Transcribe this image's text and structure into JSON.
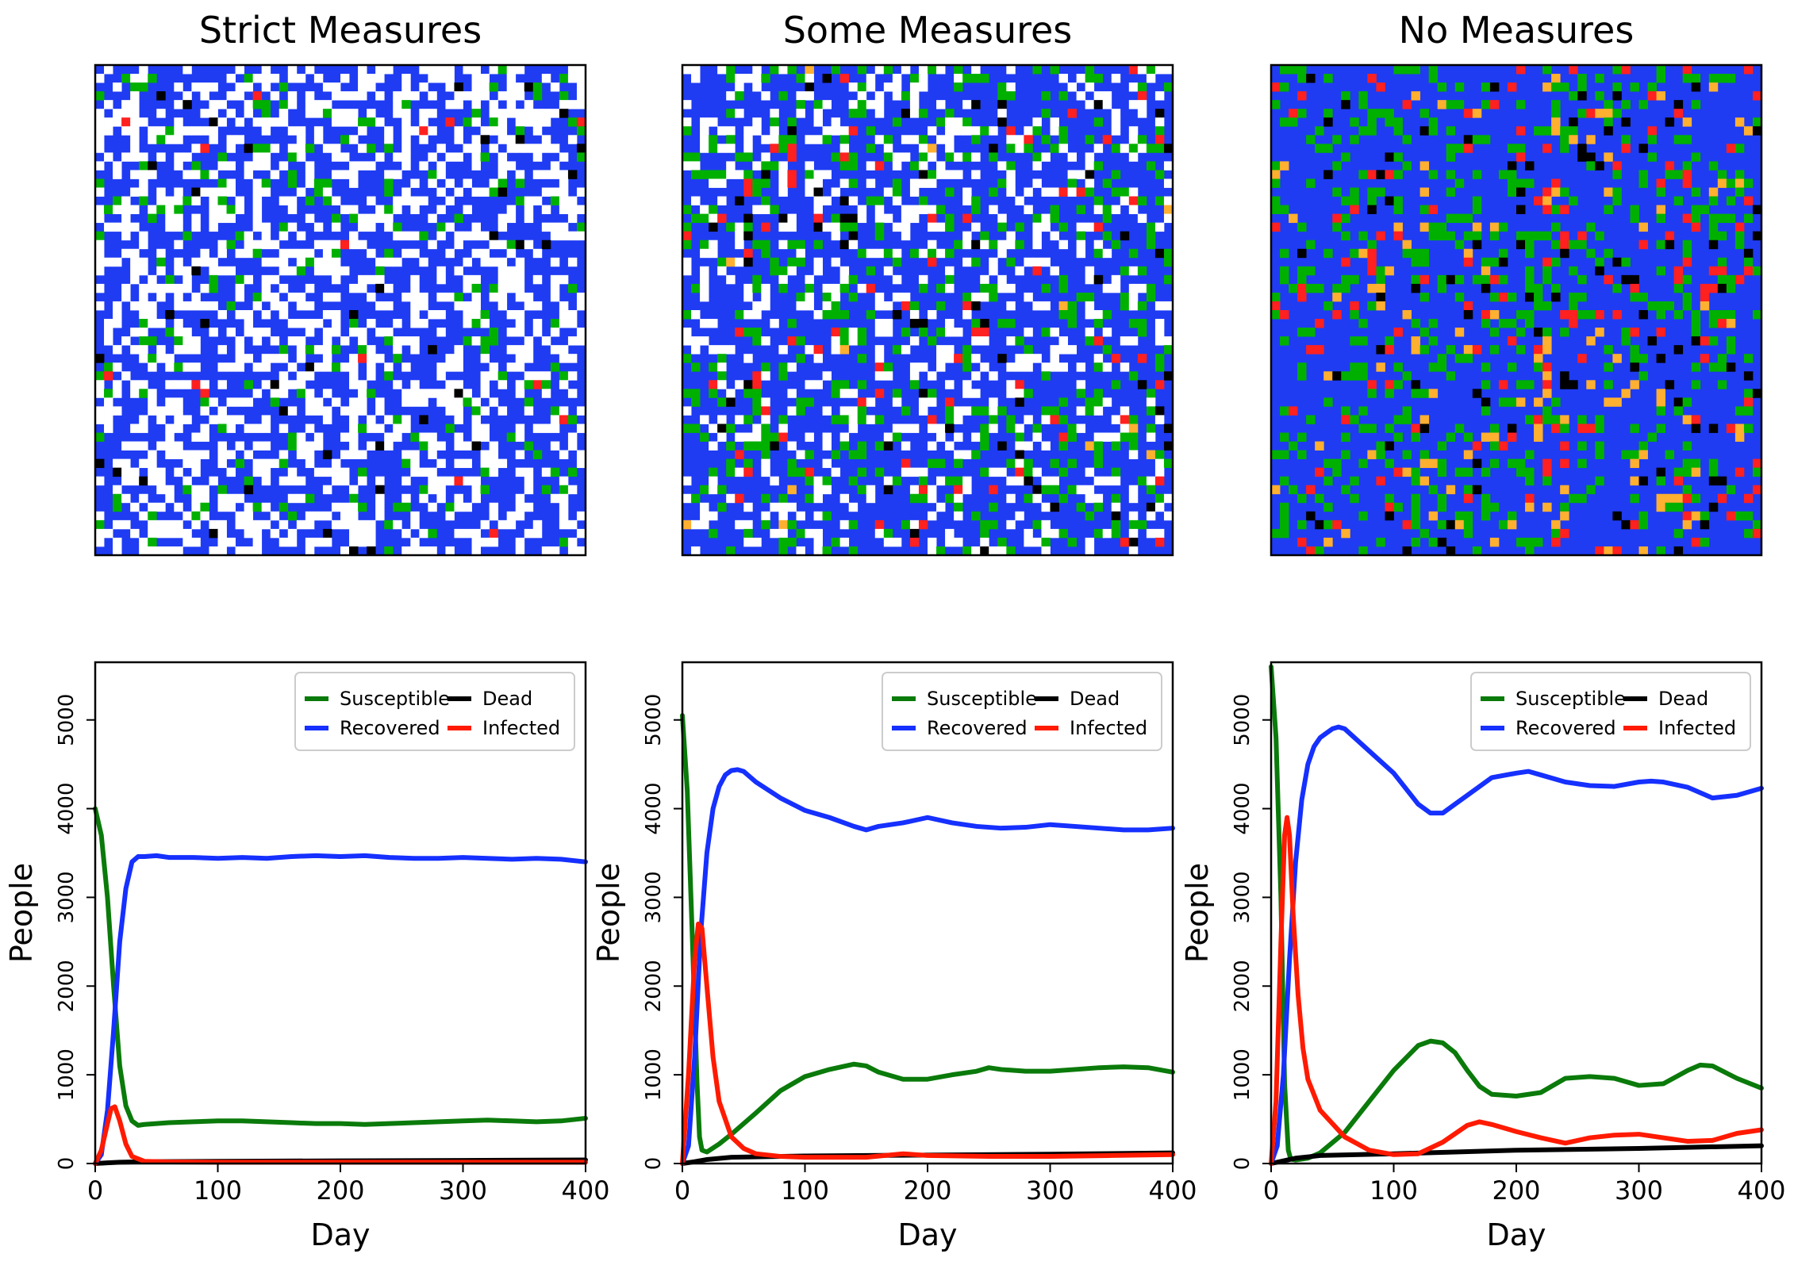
{
  "colors": {
    "susceptible": "#0a7a0a",
    "recovered": "#1530ff",
    "dead": "#000000",
    "infected": "#ff1a00",
    "grid_empty": "#ffffff",
    "grid_susceptible": "#00b000",
    "grid_recovered": "#1f3cf2",
    "grid_dead": "#000000",
    "grid_infected": "#ff2020",
    "grid_incubating": "#ffb030"
  },
  "chart_data": [
    {
      "type": "heatmap",
      "title": "Strict Measures",
      "grid_size": 56,
      "composition": {
        "empty": 0.38,
        "recovered": 0.54,
        "susceptible": 0.06,
        "dead": 0.01,
        "infected": 0.005,
        "incubating": 0.0
      }
    },
    {
      "type": "heatmap",
      "title": "Some Measures",
      "grid_size": 56,
      "composition": {
        "empty": 0.2,
        "recovered": 0.6,
        "susceptible": 0.15,
        "dead": 0.02,
        "infected": 0.02,
        "incubating": 0.005
      }
    },
    {
      "type": "heatmap",
      "title": "No Measures",
      "grid_size": 56,
      "composition": {
        "empty": 0.0,
        "recovered": 0.72,
        "susceptible": 0.16,
        "dead": 0.035,
        "infected": 0.05,
        "incubating": 0.035
      }
    },
    {
      "type": "line",
      "xlabel": "Day",
      "ylabel": "People",
      "xlim": [
        0,
        400
      ],
      "ylim": [
        0,
        5650
      ],
      "xticks": [
        0,
        100,
        200,
        300,
        400
      ],
      "yticks": [
        0,
        1000,
        2000,
        3000,
        4000,
        5000
      ],
      "legend": "top-right",
      "series": [
        {
          "name": "Susceptible",
          "key": "susceptible",
          "x": [
            0,
            5,
            10,
            15,
            20,
            25,
            30,
            35,
            40,
            60,
            80,
            100,
            120,
            140,
            160,
            180,
            200,
            220,
            240,
            260,
            280,
            300,
            320,
            340,
            360,
            380,
            400
          ],
          "values": [
            4000,
            3700,
            3000,
            2000,
            1100,
            650,
            480,
            430,
            440,
            460,
            470,
            480,
            480,
            470,
            460,
            450,
            450,
            440,
            450,
            460,
            470,
            480,
            490,
            480,
            470,
            480,
            510
          ]
        },
        {
          "name": "Dead",
          "key": "dead",
          "x": [
            0,
            10,
            20,
            40,
            100,
            200,
            300,
            400
          ],
          "values": [
            0,
            8,
            15,
            20,
            25,
            30,
            35,
            40
          ]
        },
        {
          "name": "Recovered",
          "key": "recovered",
          "x": [
            0,
            5,
            10,
            15,
            20,
            25,
            30,
            35,
            40,
            50,
            60,
            80,
            100,
            120,
            140,
            160,
            180,
            200,
            220,
            240,
            260,
            280,
            300,
            320,
            340,
            360,
            380,
            400
          ],
          "values": [
            0,
            100,
            600,
            1500,
            2500,
            3100,
            3400,
            3460,
            3460,
            3470,
            3450,
            3450,
            3440,
            3450,
            3440,
            3460,
            3470,
            3460,
            3470,
            3450,
            3440,
            3440,
            3450,
            3440,
            3430,
            3440,
            3430,
            3400
          ]
        },
        {
          "name": "Infected",
          "key": "infected",
          "x": [
            0,
            5,
            10,
            13,
            16,
            20,
            25,
            30,
            40,
            60,
            100,
            200,
            300,
            400
          ],
          "values": [
            0,
            150,
            450,
            620,
            640,
            480,
            220,
            80,
            25,
            18,
            15,
            15,
            15,
            15
          ]
        }
      ]
    },
    {
      "type": "line",
      "xlabel": "Day",
      "ylabel": "People",
      "xlim": [
        0,
        400
      ],
      "ylim": [
        0,
        5650
      ],
      "xticks": [
        0,
        100,
        200,
        300,
        400
      ],
      "yticks": [
        0,
        1000,
        2000,
        3000,
        4000,
        5000
      ],
      "legend": "top-right",
      "series": [
        {
          "name": "Susceptible",
          "key": "susceptible",
          "x": [
            0,
            4,
            8,
            12,
            14,
            16,
            20,
            30,
            40,
            60,
            80,
            100,
            120,
            140,
            150,
            160,
            180,
            200,
            220,
            240,
            250,
            260,
            280,
            300,
            320,
            340,
            360,
            380,
            400
          ],
          "values": [
            5050,
            4200,
            2600,
            900,
            300,
            150,
            130,
            220,
            330,
            570,
            820,
            980,
            1060,
            1120,
            1100,
            1030,
            950,
            950,
            1000,
            1040,
            1080,
            1060,
            1040,
            1040,
            1060,
            1080,
            1090,
            1080,
            1030
          ]
        },
        {
          "name": "Dead",
          "key": "dead",
          "x": [
            0,
            10,
            20,
            40,
            100,
            200,
            300,
            400
          ],
          "values": [
            0,
            20,
            45,
            70,
            85,
            95,
            105,
            120
          ]
        },
        {
          "name": "Recovered",
          "key": "recovered",
          "x": [
            0,
            5,
            10,
            15,
            20,
            25,
            30,
            35,
            40,
            45,
            50,
            60,
            80,
            100,
            120,
            140,
            150,
            160,
            180,
            200,
            220,
            240,
            260,
            280,
            300,
            320,
            340,
            360,
            380,
            400
          ],
          "values": [
            0,
            200,
            1200,
            2600,
            3500,
            4000,
            4250,
            4380,
            4430,
            4440,
            4420,
            4300,
            4120,
            3980,
            3900,
            3800,
            3760,
            3800,
            3840,
            3900,
            3840,
            3800,
            3780,
            3790,
            3820,
            3800,
            3780,
            3760,
            3760,
            3780
          ]
        },
        {
          "name": "Infected",
          "key": "infected",
          "x": [
            0,
            5,
            10,
            13,
            16,
            20,
            25,
            30,
            40,
            50,
            60,
            80,
            100,
            150,
            180,
            200,
            250,
            300,
            350,
            400
          ],
          "values": [
            0,
            1000,
            2300,
            2700,
            2650,
            2000,
            1200,
            700,
            300,
            170,
            110,
            80,
            70,
            70,
            110,
            90,
            80,
            80,
            90,
            100
          ]
        }
      ]
    },
    {
      "type": "line",
      "xlabel": "Day",
      "ylabel": "People",
      "xlim": [
        0,
        400
      ],
      "ylim": [
        0,
        5650
      ],
      "xticks": [
        0,
        100,
        200,
        300,
        400
      ],
      "yticks": [
        0,
        1000,
        2000,
        3000,
        4000,
        5000
      ],
      "legend": "top-right",
      "series": [
        {
          "name": "Susceptible",
          "key": "susceptible",
          "x": [
            0,
            4,
            8,
            11,
            14,
            16,
            20,
            30,
            40,
            60,
            80,
            100,
            120,
            130,
            140,
            150,
            160,
            170,
            180,
            200,
            220,
            240,
            260,
            280,
            300,
            320,
            340,
            350,
            360,
            380,
            400
          ],
          "values": [
            5600,
            4800,
            3000,
            900,
            150,
            50,
            40,
            60,
            120,
            350,
            700,
            1050,
            1330,
            1380,
            1360,
            1250,
            1050,
            870,
            780,
            760,
            800,
            960,
            980,
            960,
            880,
            900,
            1050,
            1110,
            1100,
            960,
            850
          ]
        },
        {
          "name": "Dead",
          "key": "dead",
          "x": [
            0,
            10,
            20,
            40,
            100,
            200,
            300,
            400
          ],
          "values": [
            0,
            30,
            60,
            90,
            110,
            150,
            170,
            200
          ]
        },
        {
          "name": "Recovered",
          "key": "recovered",
          "x": [
            0,
            5,
            10,
            15,
            20,
            25,
            30,
            35,
            40,
            45,
            50,
            55,
            60,
            80,
            100,
            120,
            130,
            140,
            150,
            160,
            180,
            200,
            210,
            220,
            240,
            260,
            280,
            300,
            310,
            320,
            340,
            360,
            380,
            400
          ],
          "values": [
            0,
            200,
            1000,
            2300,
            3400,
            4100,
            4500,
            4700,
            4800,
            4850,
            4900,
            4920,
            4900,
            4650,
            4400,
            4050,
            3950,
            3950,
            4050,
            4150,
            4350,
            4400,
            4420,
            4380,
            4300,
            4260,
            4250,
            4300,
            4310,
            4300,
            4240,
            4120,
            4150,
            4230
          ]
        },
        {
          "name": "Infected",
          "key": "infected",
          "x": [
            0,
            4,
            8,
            11,
            13,
            15,
            18,
            22,
            26,
            30,
            40,
            60,
            80,
            100,
            120,
            140,
            160,
            170,
            180,
            200,
            220,
            240,
            260,
            280,
            300,
            320,
            340,
            360,
            380,
            400
          ],
          "values": [
            0,
            700,
            2500,
            3700,
            3900,
            3700,
            2800,
            1900,
            1300,
            950,
            600,
            300,
            150,
            100,
            110,
            240,
            430,
            470,
            440,
            360,
            290,
            230,
            290,
            320,
            330,
            290,
            250,
            260,
            340,
            380
          ]
        }
      ]
    }
  ]
}
